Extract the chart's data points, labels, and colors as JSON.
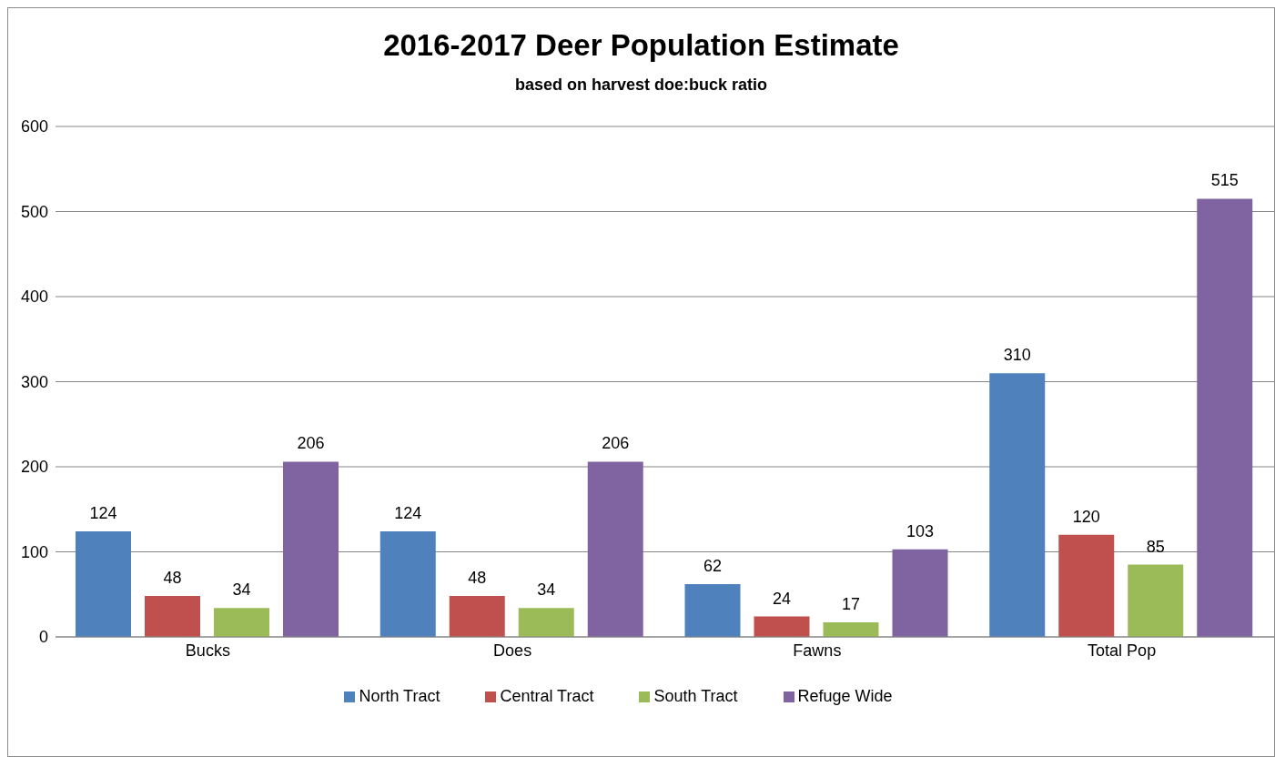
{
  "chart_data": {
    "type": "bar",
    "title": "2016-2017 Deer Population Estimate",
    "subtitle": "based on harvest doe:buck ratio",
    "categories": [
      "Bucks",
      "Does",
      "Fawns",
      "Total Pop"
    ],
    "series": [
      {
        "name": "North Tract",
        "color": "#4f81bd",
        "values": [
          124,
          124,
          62,
          310
        ]
      },
      {
        "name": "Central Tract",
        "color": "#c0504d",
        "values": [
          48,
          48,
          24,
          120
        ]
      },
      {
        "name": "South Tract",
        "color": "#9bbb59",
        "values": [
          34,
          34,
          17,
          85
        ]
      },
      {
        "name": "Refuge Wide",
        "color": "#8064a2",
        "values": [
          206,
          206,
          103,
          515
        ]
      }
    ],
    "ylim": [
      0,
      600
    ],
    "yticks": [
      0,
      100,
      200,
      300,
      400,
      500,
      600
    ],
    "grid": "y",
    "legend": "bottom",
    "data_labels": true
  }
}
